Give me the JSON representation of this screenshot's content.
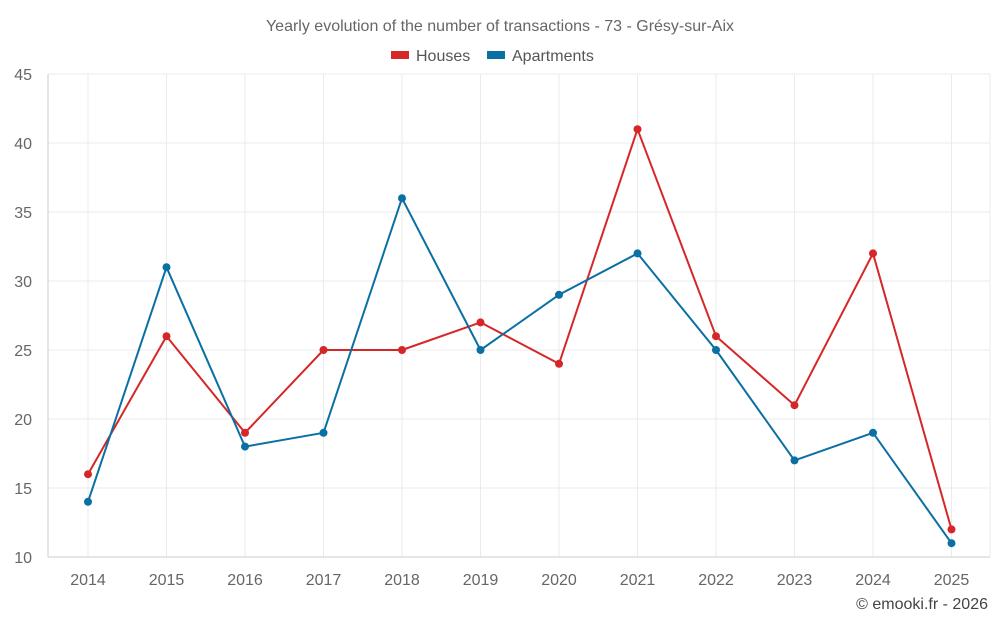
{
  "chart_data": {
    "type": "line",
    "title": "Yearly evolution of the number of transactions - 73 - Grésy-sur-Aix",
    "xlabel": "",
    "ylabel": "",
    "ylim": [
      10,
      45
    ],
    "yticks": [
      10,
      15,
      20,
      25,
      30,
      35,
      40,
      45
    ],
    "categories": [
      "2014",
      "2015",
      "2016",
      "2017",
      "2018",
      "2019",
      "2020",
      "2021",
      "2022",
      "2023",
      "2024",
      "2025"
    ],
    "grid": true,
    "legend_position": "top-center",
    "series": [
      {
        "name": "Houses",
        "color": "#d62728",
        "values": [
          16,
          26,
          19,
          25,
          25,
          27,
          24,
          41,
          26,
          21,
          32,
          12
        ]
      },
      {
        "name": "Apartments",
        "color": "#0a6fa3",
        "values": [
          14,
          31,
          18,
          19,
          36,
          25,
          29,
          32,
          25,
          17,
          19,
          11
        ]
      }
    ]
  },
  "credit": "© emooki.fr - 2026"
}
